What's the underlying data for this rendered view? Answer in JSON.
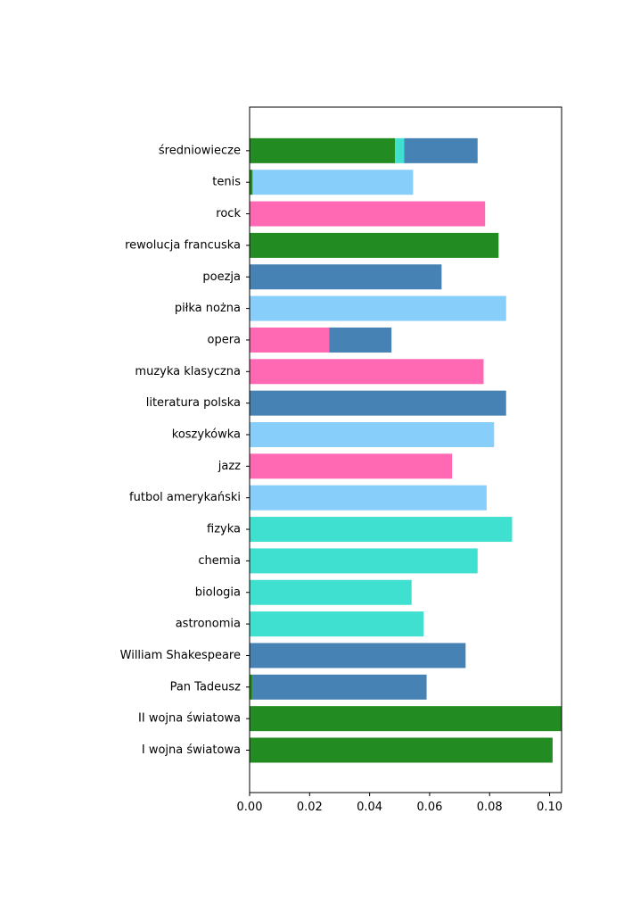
{
  "chart_data": {
    "type": "bar",
    "orientation": "horizontal",
    "stacked": true,
    "title": "",
    "xlabel": "",
    "ylabel": "",
    "xlim": [
      0,
      0.104
    ],
    "xticks": [
      0.0,
      0.02,
      0.04,
      0.06,
      0.08,
      0.1
    ],
    "xtick_labels": [
      "0.00",
      "0.02",
      "0.04",
      "0.06",
      "0.08",
      "0.10"
    ],
    "grid": false,
    "legend": "none",
    "categories": [
      "I wojna światowa",
      "II wojna światowa",
      "Pan Tadeusz",
      "William Shakespeare",
      "astronomia",
      "biologia",
      "chemia",
      "fizyka",
      "futbol amerykański",
      "jazz",
      "koszykówka",
      "literatura polska",
      "muzyka klasyczna",
      "opera",
      "piłka nożna",
      "poezja",
      "rewolucja francuska",
      "rock",
      "tenis",
      "średniowiecze"
    ],
    "series": [
      {
        "color": "#228B22",
        "values": [
          0.101,
          0.104,
          0.001,
          0,
          0,
          0,
          0,
          0,
          0,
          0,
          0,
          0,
          0,
          0,
          0,
          0,
          0.083,
          0,
          0.001,
          0.0485
        ]
      },
      {
        "color": "#40E0D0",
        "values": [
          0,
          0,
          0,
          0,
          0.058,
          0.054,
          0.076,
          0.0875,
          0,
          0,
          0,
          0,
          0,
          0,
          0,
          0,
          0,
          0,
          0,
          0.003
        ]
      },
      {
        "color": "#FF69B4",
        "values": [
          0,
          0,
          0,
          0,
          0,
          0,
          0,
          0,
          0,
          0.0675,
          0,
          0,
          0.078,
          0.0265,
          0,
          0,
          0,
          0.0785,
          0,
          0
        ]
      },
      {
        "color": "#4682B4",
        "values": [
          0,
          0,
          0.058,
          0.072,
          0,
          0,
          0,
          0,
          0,
          0,
          0,
          0.0855,
          0,
          0.0208,
          0,
          0.064,
          0,
          0,
          0,
          0.0245
        ]
      },
      {
        "color": "#87CEFA",
        "values": [
          0,
          0,
          0,
          0,
          0,
          0,
          0,
          0,
          0.079,
          0,
          0.0815,
          0,
          0,
          0,
          0.0855,
          0,
          0,
          0,
          0.0535,
          0
        ]
      }
    ]
  }
}
